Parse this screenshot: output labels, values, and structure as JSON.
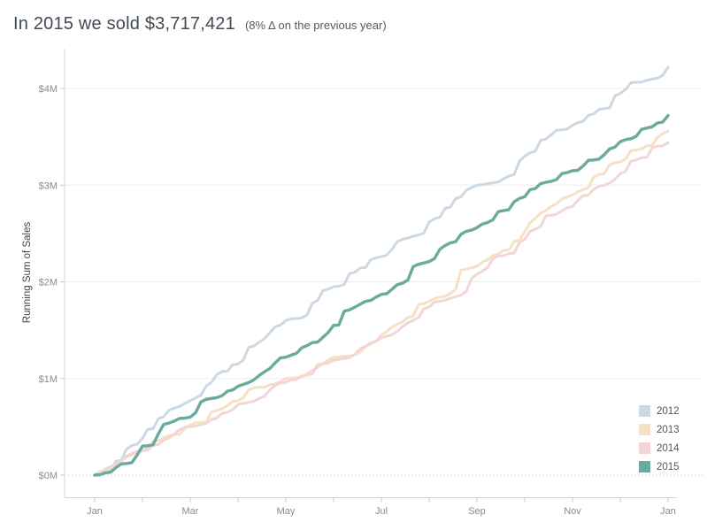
{
  "header": {
    "title": "In 2015 we sold $3,717,421",
    "subtitle": "(8% Δ on the previous year)"
  },
  "chart_data": {
    "type": "line",
    "title": "In 2015 we sold $3,717,421 (8% Δ on the previous year)",
    "xlabel": "",
    "ylabel": "Running Sum of Sales",
    "y_tick_labels": [
      "$0M",
      "$1M",
      "$2M",
      "$3M",
      "$4M"
    ],
    "y_tick_values_musd": [
      0,
      1,
      2,
      3,
      4
    ],
    "ylim_musd": [
      0,
      4.4
    ],
    "x_tick_labels": [
      "Jan",
      "Mar",
      "May",
      "Jul",
      "Sep",
      "Nov",
      "Jan"
    ],
    "x_labeled_month_index": [
      0,
      2,
      4,
      6,
      8,
      10,
      12
    ],
    "months_span": 12,
    "grid": "horizontal solid gridlines at $1M steps, dotted line at $0M",
    "legend_position": "inside bottom-right",
    "series": [
      {
        "name": "2012",
        "color": "#ccd9e4",
        "monthly_cumulative_sales_musd": [
          0,
          0.38,
          0.77,
          1.15,
          1.6,
          1.95,
          2.26,
          2.62,
          3.0,
          3.3,
          3.62,
          3.95,
          4.22
        ]
      },
      {
        "name": "2013",
        "color": "#f4e1c6",
        "monthly_cumulative_sales_musd": [
          0,
          0.26,
          0.52,
          0.77,
          1.0,
          1.22,
          1.45,
          1.8,
          2.16,
          2.52,
          2.9,
          3.24,
          3.56
        ]
      },
      {
        "name": "2014",
        "color": "#f4d5d6",
        "monthly_cumulative_sales_musd": [
          0,
          0.25,
          0.5,
          0.73,
          0.96,
          1.19,
          1.42,
          1.74,
          2.08,
          2.44,
          2.78,
          3.12,
          3.44
        ]
      },
      {
        "name": "2015",
        "color": "#69ab9c",
        "monthly_cumulative_sales_musd": [
          0,
          0.3,
          0.6,
          0.92,
          1.22,
          1.55,
          1.87,
          2.21,
          2.56,
          2.88,
          3.15,
          3.45,
          3.72
        ]
      }
    ],
    "annotations": {
      "total_2015": "$3,717,421",
      "yoy_change": "8%"
    }
  },
  "style": {
    "grid_color": "#ededed",
    "zero_line_color": "#bdbdbd",
    "axis_line_color": "#d7d7d7",
    "tick_color": "#c9c9c9",
    "tick_label_color": "#8b8b8b"
  }
}
